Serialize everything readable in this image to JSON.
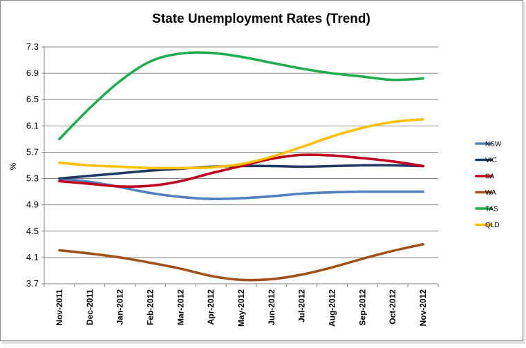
{
  "chart_data": {
    "type": "line",
    "title": "State Unemployment Rates (Trend)",
    "xlabel": "",
    "ylabel": "%",
    "ylim": [
      3.7,
      7.3
    ],
    "yticks": [
      "7.3",
      "6.9",
      "6.5",
      "6.1",
      "5.7",
      "5.3",
      "4.9",
      "4.5",
      "4.1",
      "3.7"
    ],
    "grid": "horizontal",
    "legend_position": "right",
    "categories": [
      "Nov-2011",
      "Dec-2011",
      "Jan-2012",
      "Feb-2012",
      "Mar-2012",
      "Apr-2012",
      "May-2012",
      "Jun-2012",
      "Jul-2012",
      "Aug-2012",
      "Sep-2012",
      "Oct-2012",
      "Nov-2012"
    ],
    "series": [
      {
        "name": "NSW",
        "color": "#4f81bd",
        "values": [
          5.3,
          5.25,
          5.17,
          5.08,
          5.02,
          4.99,
          5.0,
          5.03,
          5.07,
          5.09,
          5.1,
          5.1,
          5.1
        ]
      },
      {
        "name": "VIC",
        "color": "#1f3864",
        "values": [
          5.3,
          5.34,
          5.38,
          5.42,
          5.45,
          5.48,
          5.49,
          5.49,
          5.48,
          5.49,
          5.5,
          5.5,
          5.49
        ]
      },
      {
        "name": "SA",
        "color": "#c0001c",
        "values": [
          5.26,
          5.22,
          5.18,
          5.19,
          5.26,
          5.38,
          5.49,
          5.6,
          5.66,
          5.65,
          5.61,
          5.56,
          5.49
        ]
      },
      {
        "name": "WA",
        "color": "#a0521a",
        "values": [
          4.21,
          4.16,
          4.1,
          4.02,
          3.93,
          3.82,
          3.76,
          3.77,
          3.84,
          3.95,
          4.08,
          4.2,
          4.3
        ]
      },
      {
        "name": "TAS",
        "color": "#1fae4b",
        "values": [
          5.9,
          6.37,
          6.78,
          7.08,
          7.2,
          7.21,
          7.15,
          7.06,
          6.97,
          6.9,
          6.85,
          6.8,
          6.82
        ]
      },
      {
        "name": "QLD",
        "color": "#ffc000",
        "values": [
          5.54,
          5.5,
          5.48,
          5.46,
          5.46,
          5.47,
          5.52,
          5.63,
          5.78,
          5.94,
          6.07,
          6.16,
          6.2
        ]
      }
    ]
  }
}
